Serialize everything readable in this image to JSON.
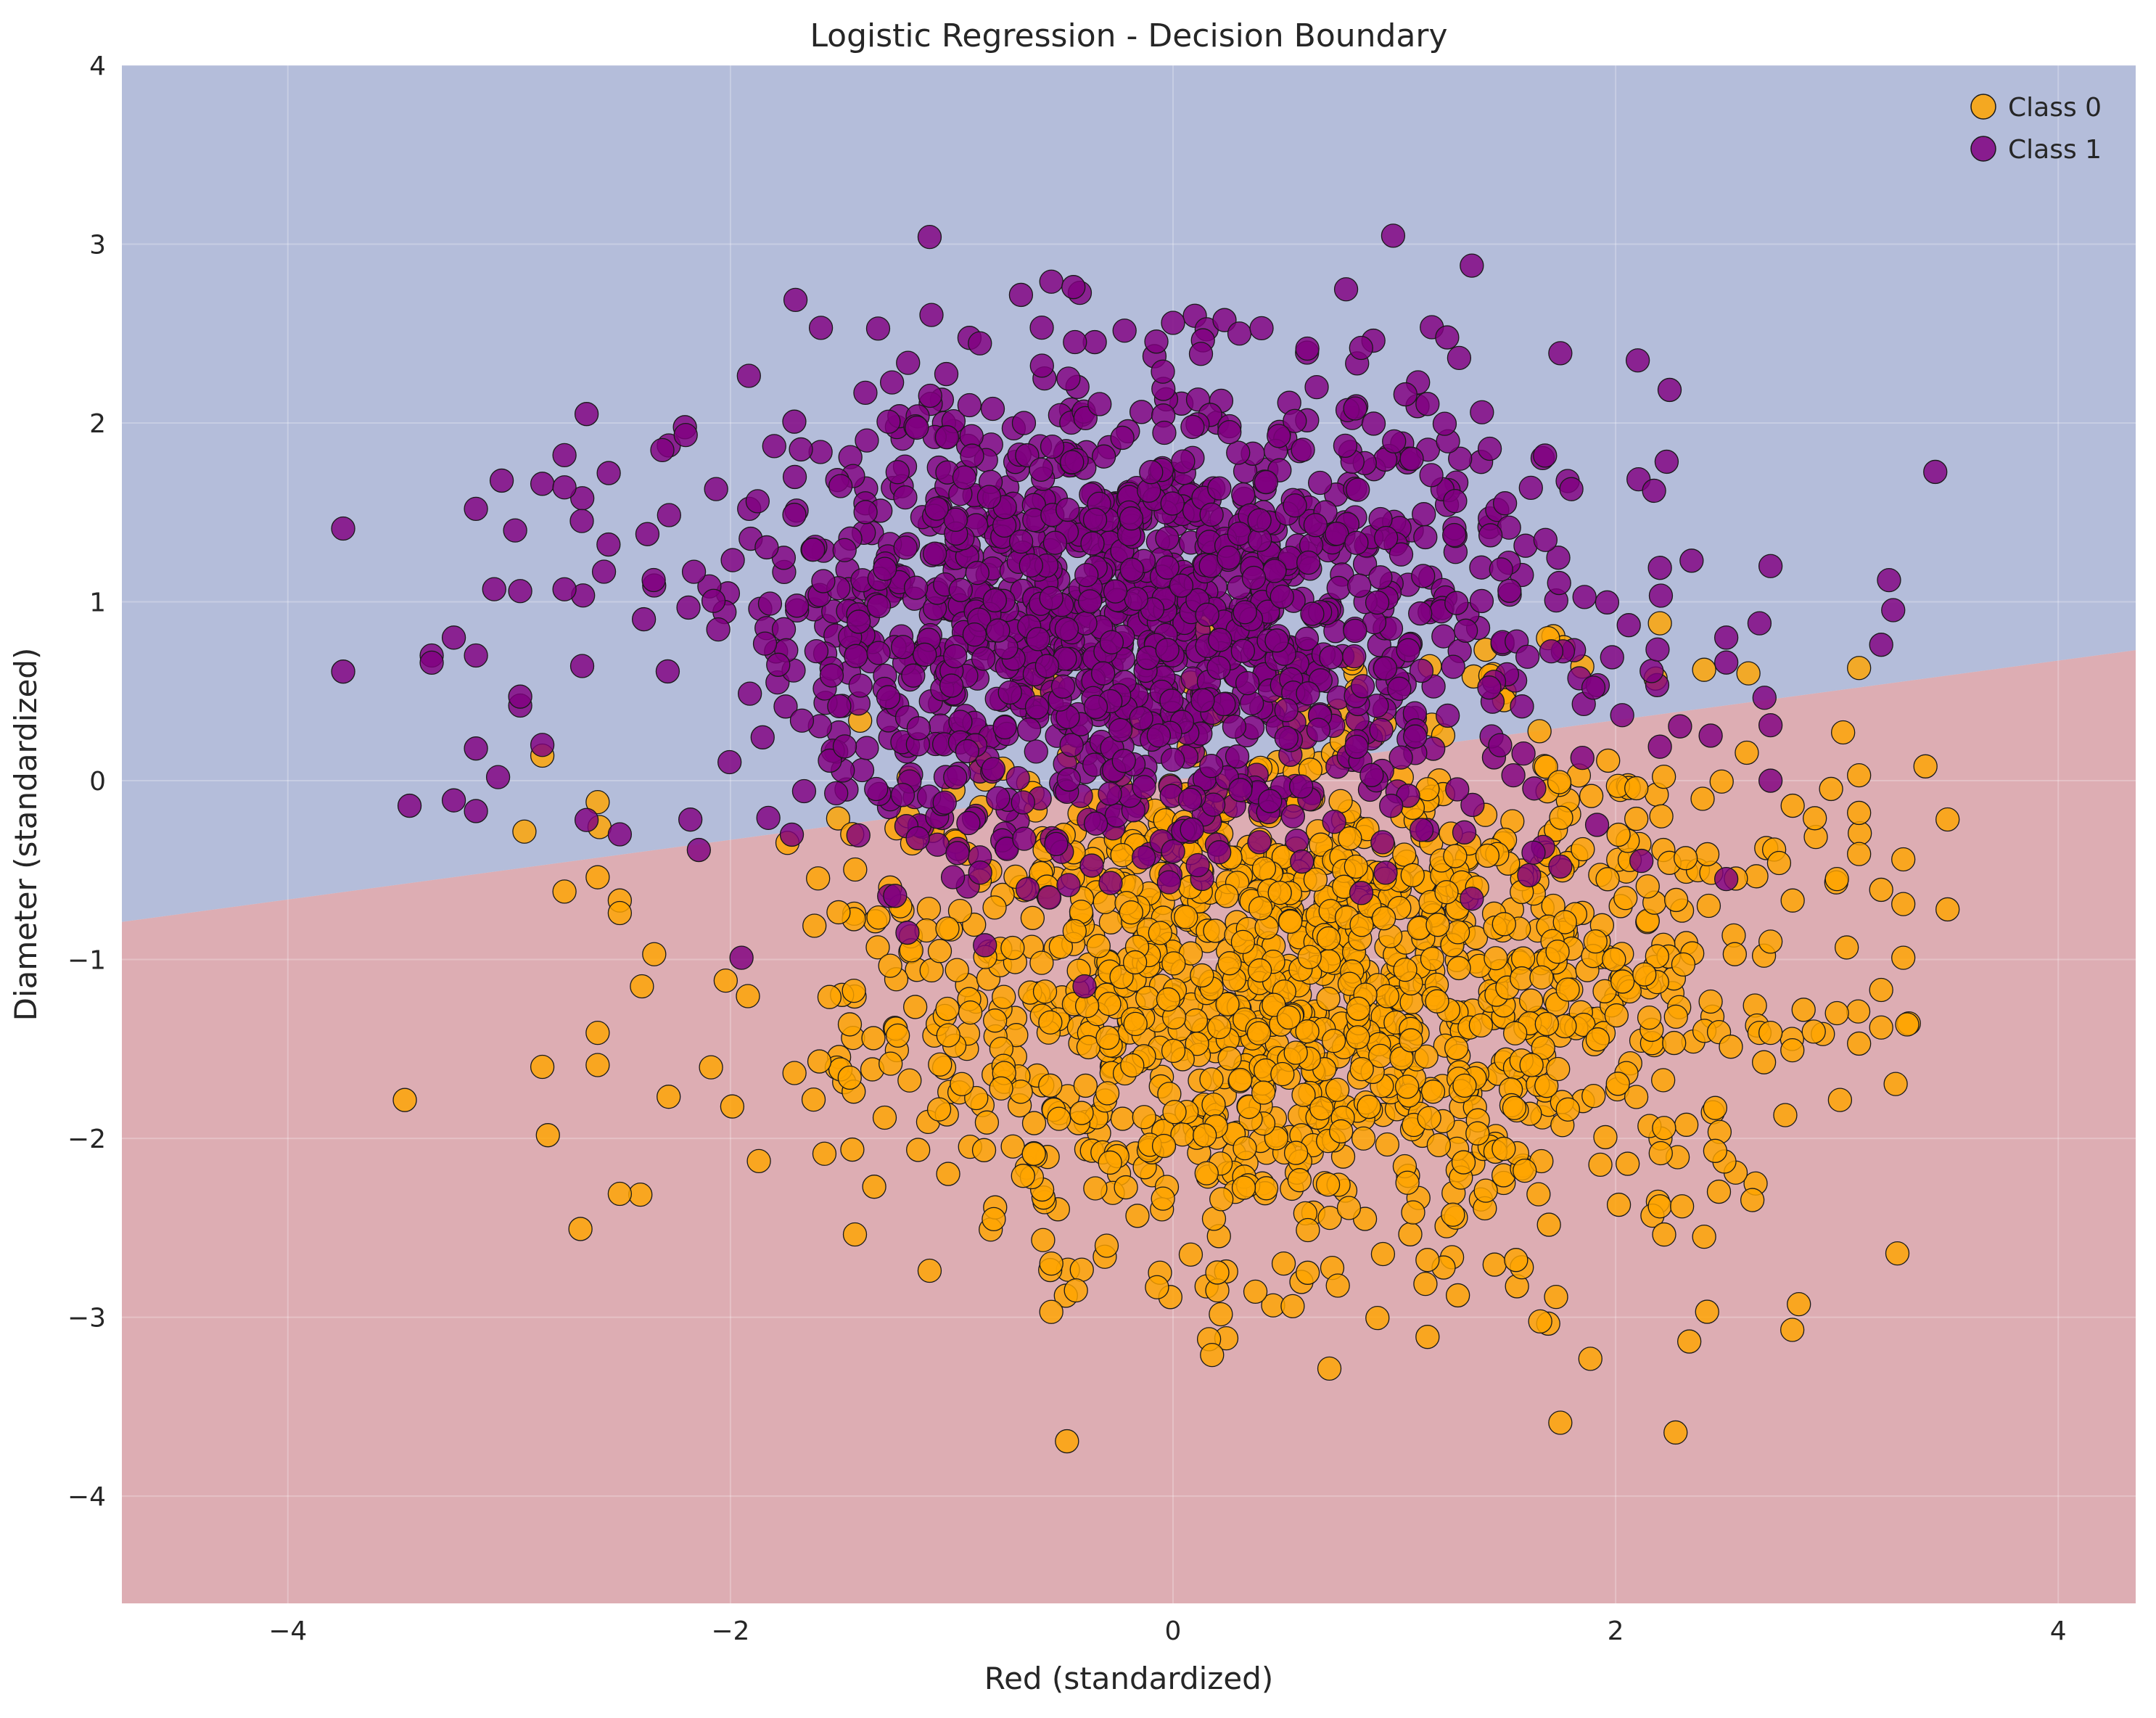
{
  "chart_data": {
    "type": "scatter",
    "title": "Logistic Regression - Decision Boundary",
    "xlabel": "Red (standardized)",
    "ylabel": "Diameter (standardized)",
    "xlim": [
      -4.75,
      4.35
    ],
    "ylim": [
      -4.6,
      4.0
    ],
    "grid": true,
    "legend_position": "top-right",
    "x_ticks": [
      -4,
      -2,
      0,
      2,
      4
    ],
    "y_ticks": [
      -4,
      -3,
      -2,
      -1,
      0,
      1,
      2,
      3,
      4
    ],
    "x_tick_labels": [
      "−4",
      "−2",
      "0",
      "2",
      "4"
    ],
    "y_tick_labels": [
      "−4",
      "−3",
      "−2",
      "−1",
      "0",
      "1",
      "2",
      "3",
      "4"
    ],
    "decision_boundary": {
      "points": [
        [
          -4.75,
          -0.79
        ],
        [
          4.35,
          0.73
        ]
      ],
      "region_above_color": "#b4bdda",
      "region_below_color": "#ddadb3"
    },
    "series": [
      {
        "name": "Class 0",
        "color": "#ffa500",
        "cluster": {
          "center": [
            0.55,
            -1.15
          ],
          "spread": [
            1.0,
            0.75
          ],
          "count": 1400
        },
        "values": [
          [
            -2.85,
            -1.6
          ],
          [
            -2.75,
            -0.62
          ],
          [
            -2.6,
            -1.41
          ],
          [
            -2.6,
            -1.59
          ],
          [
            -2.6,
            -0.54
          ],
          [
            -2.5,
            -2.31
          ],
          [
            -2.5,
            -0.67
          ],
          [
            -2.5,
            -0.74
          ],
          [
            -2.4,
            -1.15
          ],
          [
            -2.6,
            -0.12
          ],
          [
            -2.85,
            0.14
          ],
          [
            -1.1,
            -2.74
          ],
          [
            -0.55,
            -2.7
          ],
          [
            -0.3,
            -2.6
          ],
          [
            0.2,
            -2.85
          ],
          [
            0.2,
            -2.75
          ],
          [
            0.5,
            -2.7
          ],
          [
            1.15,
            -3.11
          ],
          [
            1.15,
            -2.68
          ],
          [
            1.75,
            -3.59
          ],
          [
            1.55,
            -2.68
          ],
          [
            2.2,
            -2.38
          ],
          [
            2.3,
            -2.38
          ],
          [
            2.4,
            -2.55
          ],
          [
            2.45,
            -2.07
          ],
          [
            2.45,
            -1.83
          ],
          [
            2.65,
            -1.41
          ],
          [
            2.7,
            -1.41
          ],
          [
            2.8,
            -0.67
          ],
          [
            2.7,
            -0.9
          ],
          [
            3.0,
            -1.3
          ],
          [
            3.1,
            -1.47
          ],
          [
            3.2,
            -1.38
          ],
          [
            3.2,
            -1.17
          ],
          [
            3.3,
            -0.99
          ],
          [
            3.3,
            -0.69
          ],
          [
            3.2,
            -0.61
          ],
          [
            3.0,
            -0.55
          ],
          [
            3.1,
            -0.41
          ],
          [
            3.3,
            -0.44
          ],
          [
            3.1,
            -0.18
          ],
          [
            3.1,
            0.03
          ],
          [
            3.4,
            0.08
          ],
          [
            2.9,
            -0.21
          ],
          [
            2.8,
            -0.14
          ],
          [
            2.6,
            0.6
          ],
          [
            3.1,
            0.63
          ],
          [
            2.2,
            0.88
          ],
          [
            2.4,
            0.62
          ]
        ]
      },
      {
        "name": "Class 1",
        "color": "#800080",
        "cluster": {
          "center": [
            -0.15,
            0.9
          ],
          "spread": [
            0.95,
            0.65
          ],
          "count": 1400
        },
        "values": [
          [
            -3.75,
            1.41
          ],
          [
            -3.75,
            0.61
          ],
          [
            -3.45,
            -0.14
          ],
          [
            -3.35,
            0.7
          ],
          [
            -3.35,
            0.66
          ],
          [
            -3.25,
            0.8
          ],
          [
            -3.25,
            -0.11
          ],
          [
            -3.15,
            -0.17
          ],
          [
            -3.15,
            0.18
          ],
          [
            -3.15,
            0.7
          ],
          [
            -3.15,
            1.52
          ],
          [
            -3.05,
            0.02
          ],
          [
            -2.95,
            0.42
          ],
          [
            -2.95,
            0.47
          ],
          [
            -2.95,
            1.06
          ],
          [
            -2.85,
            1.66
          ],
          [
            -2.85,
            0.2
          ],
          [
            -2.75,
            1.64
          ],
          [
            -2.75,
            1.82
          ],
          [
            -2.75,
            1.07
          ],
          [
            -2.65,
            2.05
          ],
          [
            -2.65,
            -0.22
          ],
          [
            -2.55,
            1.72
          ],
          [
            -2.5,
            -0.3
          ],
          [
            -1.1,
            3.04
          ],
          [
            -0.55,
            2.79
          ],
          [
            -0.45,
            2.76
          ],
          [
            0.0,
            2.56
          ],
          [
            0.3,
            2.5
          ],
          [
            0.4,
            2.53
          ],
          [
            1.35,
            2.88
          ],
          [
            0.85,
            2.42
          ],
          [
            1.75,
            2.39
          ],
          [
            2.1,
            2.35
          ],
          [
            1.05,
            2.16
          ],
          [
            2.2,
            1.19
          ],
          [
            2.65,
            0.88
          ],
          [
            2.7,
            1.2
          ],
          [
            3.2,
            0.76
          ],
          [
            2.7,
            0.31
          ],
          [
            2.7,
            0.0
          ],
          [
            2.5,
            0.8
          ],
          [
            2.5,
            -0.55
          ],
          [
            2.2,
            0.19
          ],
          [
            1.75,
            -0.48
          ],
          [
            1.35,
            -0.66
          ],
          [
            -0.4,
            -1.15
          ],
          [
            -0.85,
            -0.92
          ],
          [
            -1.95,
            -0.99
          ],
          [
            -1.2,
            -0.85
          ]
        ]
      }
    ]
  }
}
